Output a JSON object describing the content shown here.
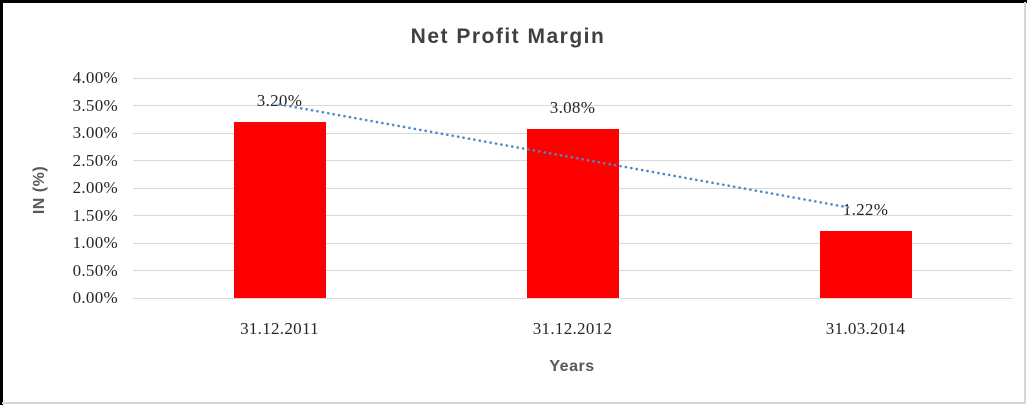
{
  "chart_data": {
    "type": "bar",
    "title": "Net Profit Margin",
    "categories": [
      "31.12.2011",
      "31.12.2012",
      "31.03.2014"
    ],
    "values": [
      3.2,
      3.08,
      1.22
    ],
    "data_labels": [
      "3.20%",
      "3.08%",
      "1.22%"
    ],
    "xlabel": "Years",
    "ylabel": "IN (%)",
    "ylim": [
      0,
      4
    ],
    "ytick_step": 0.5,
    "ytick_labels": [
      "0.00%",
      "0.50%",
      "1.00%",
      "1.50%",
      "2.00%",
      "2.50%",
      "3.00%",
      "3.50%",
      "4.00%"
    ],
    "grid": true,
    "legend": "none",
    "bar_color": "#ff0000",
    "title_color": "#404040",
    "axis_title_color": "#595959",
    "tick_color": "#262626",
    "gridline_color": "#d9d9d9",
    "trendline": {
      "style": "dotted",
      "color": "#4a89c8",
      "start_value": 3.52,
      "end_value": 1.64
    }
  }
}
